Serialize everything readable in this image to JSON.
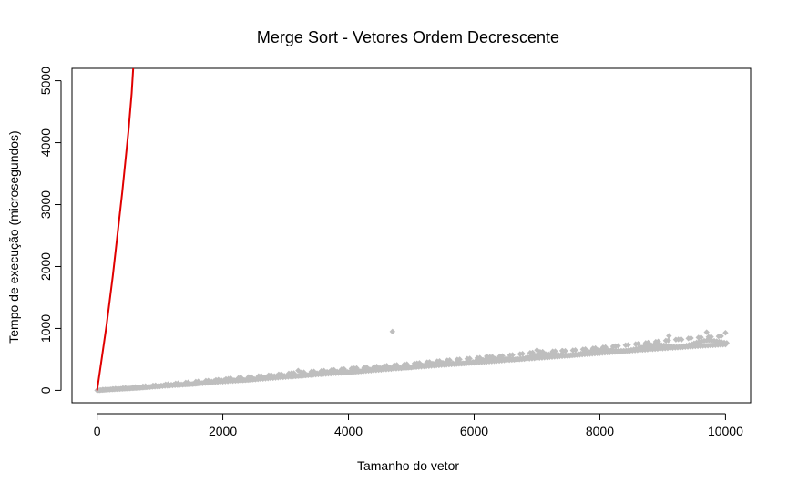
{
  "chart_data": {
    "type": "scatter",
    "title": "Merge Sort - Vetores Ordem Decrescente",
    "xlabel": "Tamanho do vetor",
    "ylabel": "Tempo de execução (microsegundos)",
    "xlim": [
      -400,
      10400
    ],
    "ylim": [
      -200,
      5200
    ],
    "xticks": [
      0,
      2000,
      4000,
      6000,
      8000,
      10000
    ],
    "yticks": [
      0,
      1000,
      2000,
      3000,
      4000,
      5000
    ],
    "xtick_labels": [
      "0",
      "2000",
      "4000",
      "6000",
      "8000",
      "10000"
    ],
    "ytick_labels": [
      "0",
      "1000",
      "2000",
      "3000",
      "4000",
      "5000"
    ],
    "grid": false,
    "series": [
      {
        "kind": "points",
        "color": "#bebebe",
        "marker": "diamond",
        "x": [
          0,
          500,
          1000,
          1500,
          2000,
          2500,
          3000,
          3500,
          4000,
          4500,
          5000,
          5500,
          6000,
          6500,
          7000,
          7500,
          8000,
          8500,
          9000,
          9500,
          10000
        ],
        "y": [
          0,
          30,
          65,
          100,
          140,
          175,
          215,
          255,
          290,
          330,
          370,
          410,
          445,
          485,
          520,
          560,
          600,
          640,
          675,
          710,
          740
        ],
        "upper": [
          5,
          45,
          90,
          135,
          180,
          225,
          270,
          310,
          350,
          390,
          430,
          480,
          520,
          560,
          620,
          640,
          690,
          740,
          800,
          850,
          880
        ],
        "outliers": [
          [
            4700,
            950
          ],
          [
            3200,
            320
          ],
          [
            6200,
            550
          ],
          [
            7000,
            650
          ],
          [
            7400,
            640
          ],
          [
            9100,
            880
          ],
          [
            9300,
            820
          ],
          [
            9700,
            940
          ],
          [
            10000,
            930
          ]
        ]
      },
      {
        "kind": "line",
        "color": "#e00000",
        "x": [
          0,
          50,
          100,
          150,
          200,
          250,
          300,
          350,
          400,
          450,
          500,
          550,
          580
        ],
        "y": [
          0,
          350,
          700,
          1050,
          1450,
          1850,
          2300,
          2750,
          3200,
          3700,
          4200,
          4800,
          5300
        ]
      }
    ]
  }
}
